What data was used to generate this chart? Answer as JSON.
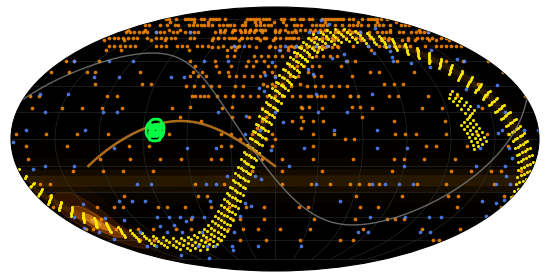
{
  "background_color": "#000000",
  "grid_color": "#303838",
  "grid_alpha": 0.7,
  "grid_lw": 0.5,
  "dot_size_orange": 7,
  "dot_size_blue": 7,
  "dot_size_yellow": 5,
  "dot_size_green": 4,
  "orange_color": "#FF8C00",
  "blue_color": "#5588FF",
  "yellow_color": "#FFEE00",
  "green_color": "#00FF44",
  "figsize": [
    5.5,
    2.78
  ],
  "dpi": 100
}
